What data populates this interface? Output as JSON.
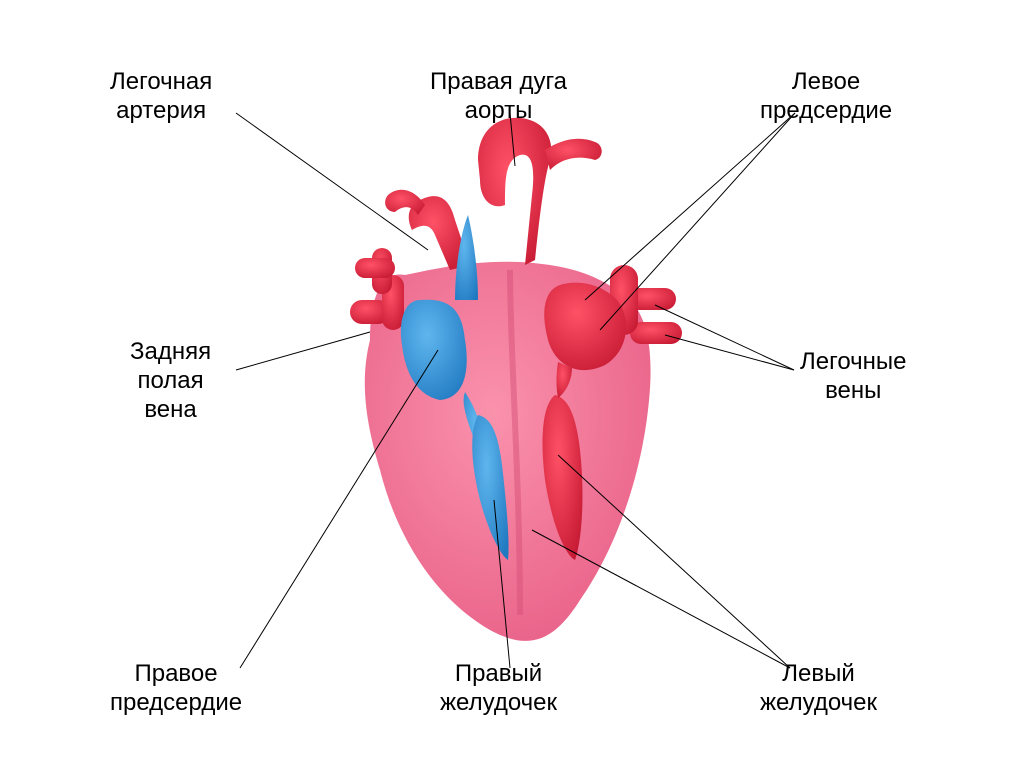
{
  "diagram": {
    "type": "infographic",
    "background_color": "#ffffff",
    "label_fontsize": 24,
    "label_color": "#000000",
    "leader_line_color": "#000000",
    "leader_line_width": 1,
    "colors": {
      "heart_body": "#f57a9b",
      "heart_body_dark": "#e85e86",
      "artery_red": "#e2203b",
      "artery_red_light": "#ef3d54",
      "vein_blue": "#2a8dd8",
      "vein_blue_light": "#4aa6e8",
      "inner_highlight": "#c31630"
    },
    "labels": {
      "pulmonary_artery": "Легочная\nартерия",
      "aortic_arch": "Правая дуга\nаорты",
      "left_atrium": "Левое\nпредсердие",
      "posterior_vena_cava": "Задняя\nполая\nвена",
      "pulmonary_veins": "Легочные\nвены",
      "right_atrium": "Правое\nпредсердие",
      "right_ventricle": "Правый\nжелудочек",
      "left_ventricle": "Левый\nжелудочек"
    },
    "leader_lines": [
      {
        "name": "pulmonary_artery",
        "points": [
          [
            236,
            113
          ],
          [
            428,
            250
          ]
        ]
      },
      {
        "name": "aortic_arch",
        "points": [
          [
            510,
            113
          ],
          [
            515,
            166
          ]
        ]
      },
      {
        "name": "left_atrium_1",
        "points": [
          [
            795,
            113
          ],
          [
            585,
            300
          ]
        ]
      },
      {
        "name": "left_atrium_2",
        "points": [
          [
            795,
            113
          ],
          [
            600,
            330
          ]
        ]
      },
      {
        "name": "posterior_vena_cava",
        "points": [
          [
            236,
            370
          ],
          [
            370,
            332
          ]
        ]
      },
      {
        "name": "pulmonary_veins_1",
        "points": [
          [
            794,
            370
          ],
          [
            655,
            305
          ]
        ]
      },
      {
        "name": "pulmonary_veins_2",
        "points": [
          [
            794,
            370
          ],
          [
            665,
            335
          ]
        ]
      },
      {
        "name": "right_atrium",
        "points": [
          [
            240,
            668
          ],
          [
            438,
            350
          ]
        ]
      },
      {
        "name": "right_ventricle",
        "points": [
          [
            510,
            668
          ],
          [
            494,
            500
          ]
        ]
      },
      {
        "name": "left_ventricle_1",
        "points": [
          [
            790,
            668
          ],
          [
            532,
            530
          ]
        ]
      },
      {
        "name": "left_ventricle_2",
        "points": [
          [
            790,
            668
          ],
          [
            558,
            455
          ]
        ]
      }
    ]
  }
}
